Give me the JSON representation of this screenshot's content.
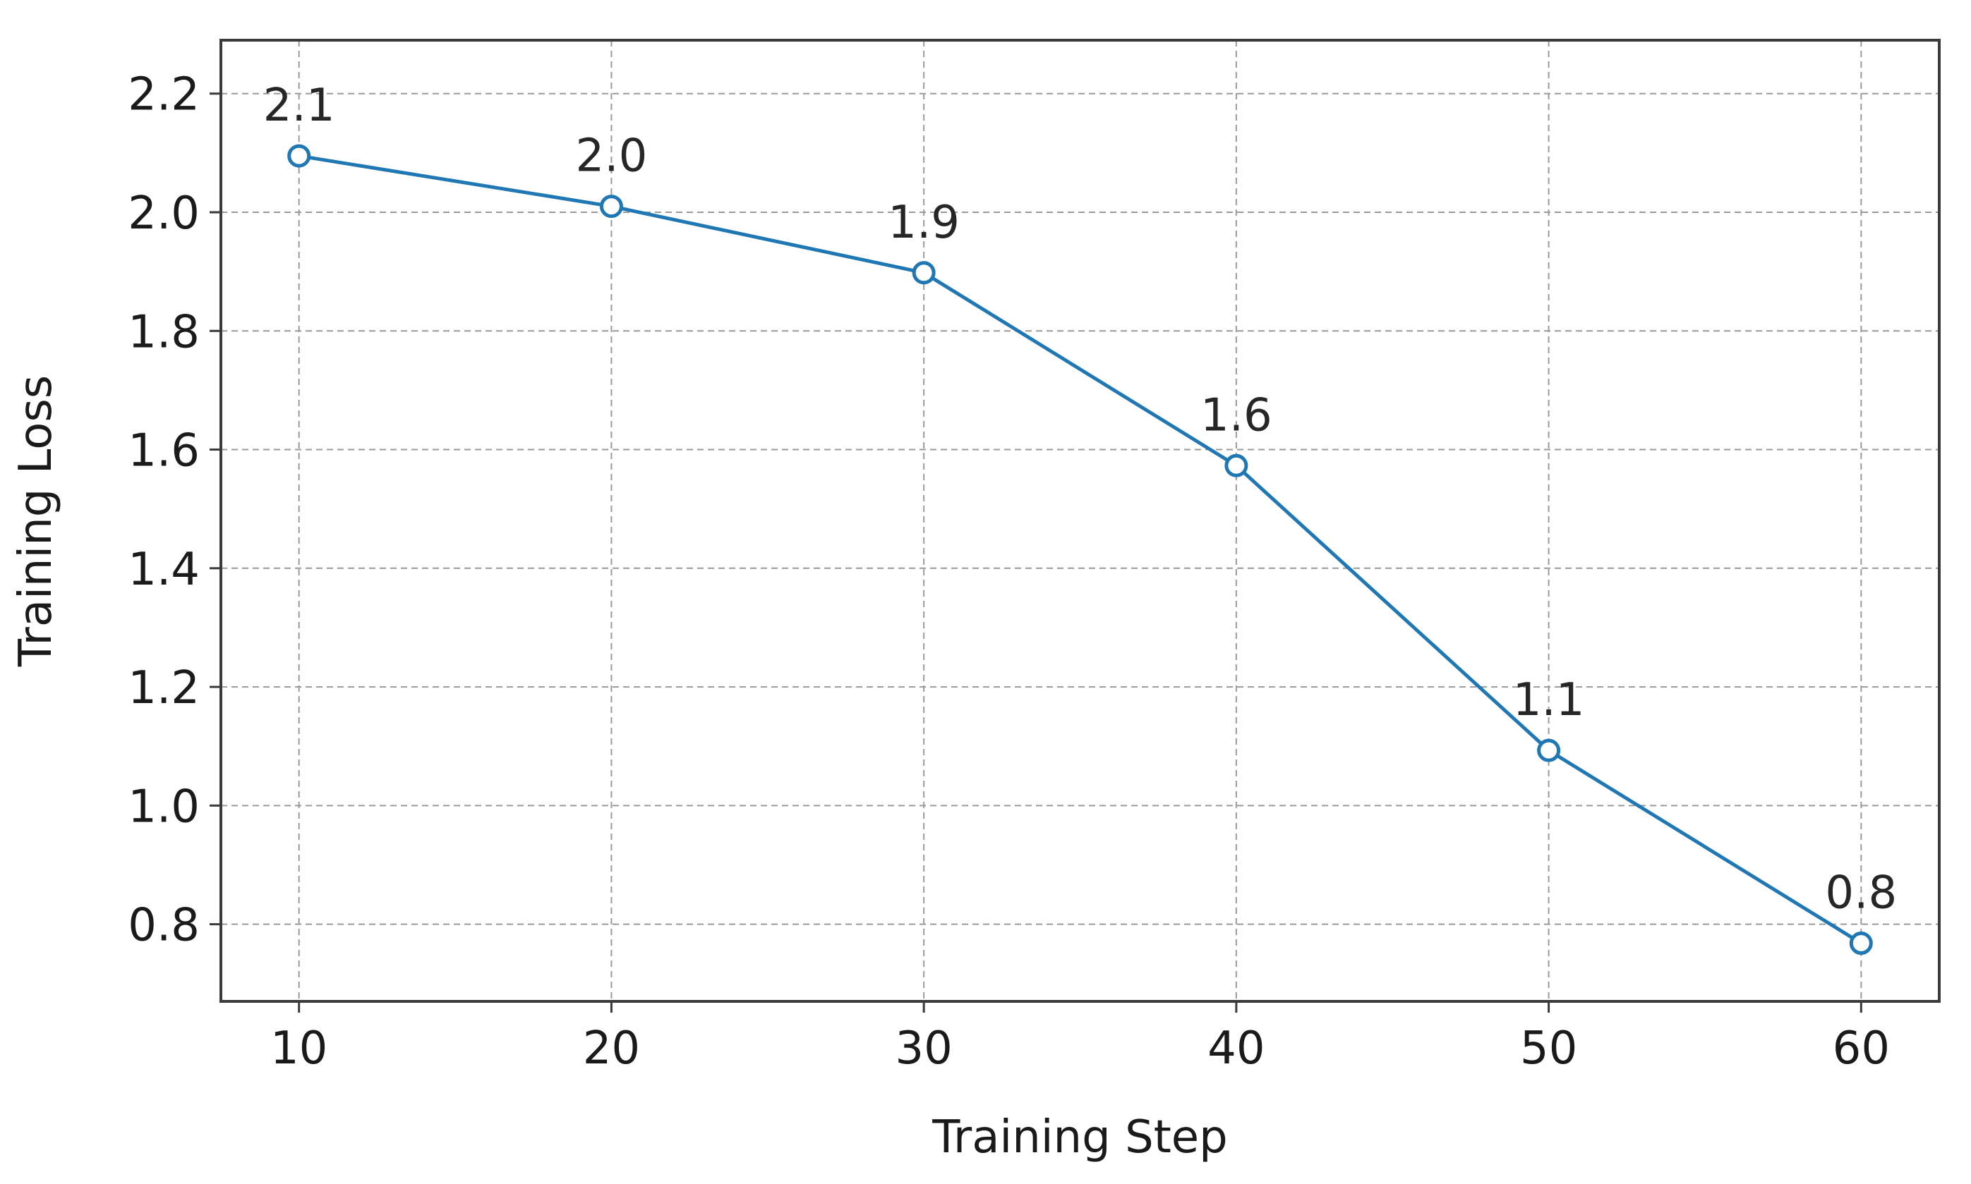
{
  "chart_data": {
    "type": "line",
    "title": "",
    "xlabel": "Training Step",
    "ylabel": "Training Loss",
    "x": [
      10,
      20,
      30,
      40,
      50,
      60
    ],
    "series": [
      {
        "values": [
          2.095,
          2.01,
          1.898,
          1.573,
          1.093,
          0.768
        ],
        "point_labels": [
          "2.1",
          "2.0",
          "1.9",
          "1.6",
          "1.1",
          "0.8"
        ],
        "color": "#1f77b4",
        "marker": "hollow-circle"
      }
    ],
    "xlim": [
      7.5,
      62.5
    ],
    "ylim": [
      0.67,
      2.29
    ],
    "xticks": [
      10,
      20,
      30,
      40,
      50,
      60
    ],
    "xtick_labels": [
      "10",
      "20",
      "30",
      "40",
      "50",
      "60"
    ],
    "yticks": [
      0.8,
      1.0,
      1.2,
      1.4,
      1.6,
      1.8,
      2.0,
      2.2
    ],
    "ytick_labels": [
      "0.8",
      "1.0",
      "1.2",
      "1.4",
      "1.6",
      "1.8",
      "2.0",
      "2.2"
    ],
    "grid": true,
    "legend": "none"
  }
}
